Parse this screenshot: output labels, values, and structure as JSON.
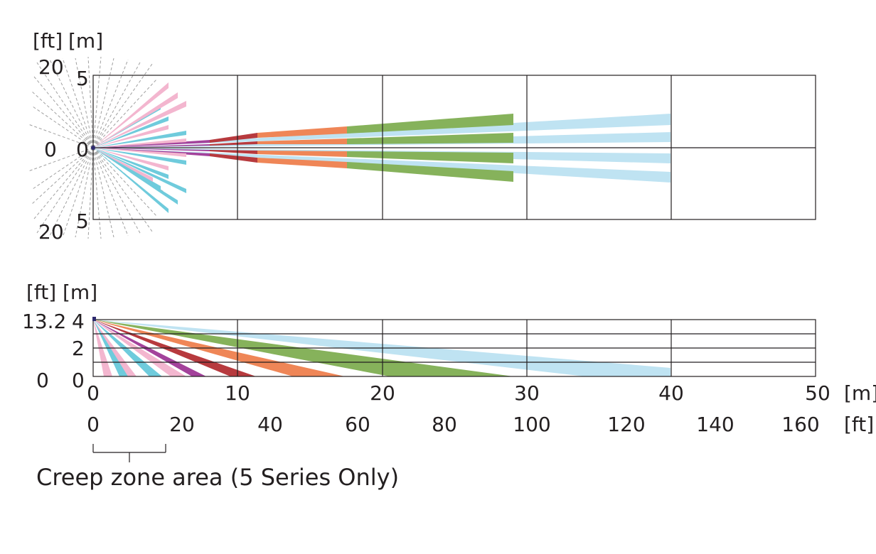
{
  "colors": {
    "light_blue": "#bfe3f2",
    "green": "#86b25b",
    "orange": "#ef8657",
    "dark_red": "#b73a3e",
    "purple": "#a3429b",
    "pink": "#f3b6cf",
    "cyan": "#6fcbdc",
    "grid": "#231f20",
    "dashed": "#a0a0a0"
  },
  "top_view": {
    "unit_ft": "[ft]",
    "unit_m": "[m]",
    "y_ft_labels": [
      "20",
      "0",
      "20"
    ],
    "y_m_labels": [
      "5",
      "0",
      "5"
    ]
  },
  "side_view": {
    "unit_ft": "[ft]",
    "unit_m": "[m]",
    "y_ft_labels": [
      "13.2",
      "0"
    ],
    "y_m_labels": [
      "4",
      "2",
      "0"
    ]
  },
  "x_axis_m": {
    "labels": [
      "0",
      "10",
      "20",
      "30",
      "40",
      "50"
    ],
    "unit": "[m]"
  },
  "x_axis_ft": {
    "labels": [
      "0",
      "20",
      "40",
      "60",
      "80",
      "100",
      "120",
      "140",
      "160"
    ],
    "unit": "[ft]"
  },
  "creep_zone": {
    "label": "Creep zone area (5 Series Only)"
  }
}
